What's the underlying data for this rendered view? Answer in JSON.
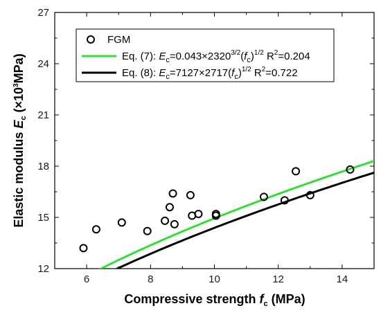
{
  "chart_data": {
    "type": "scatter",
    "xlabel": {
      "main": "Compressive strength ",
      "var": "f",
      "sub": "c",
      "unit": " (MPa)"
    },
    "ylabel": {
      "main": "Elastic modulus ",
      "var": "E",
      "sub": "c",
      "unit_pre": " (×10",
      "unit_sup": "3",
      "unit_post": "MPa)"
    },
    "xlim": [
      5,
      15
    ],
    "ylim": [
      12,
      27
    ],
    "x_ticks": [
      "6",
      "8",
      "10",
      "12",
      "14"
    ],
    "y_ticks": [
      "12",
      "15",
      "18",
      "21",
      "24",
      "27"
    ],
    "legend_placement": "top-left",
    "series": [
      {
        "name": "FGM",
        "kind": "markers",
        "marker": "open-circle",
        "color": "#000000",
        "points": [
          [
            5.9,
            13.2
          ],
          [
            6.3,
            14.3
          ],
          [
            7.1,
            14.7
          ],
          [
            7.9,
            14.2
          ],
          [
            8.45,
            14.8
          ],
          [
            8.6,
            15.6
          ],
          [
            8.7,
            16.4
          ],
          [
            8.75,
            14.6
          ],
          [
            9.25,
            16.3
          ],
          [
            9.3,
            15.1
          ],
          [
            9.5,
            15.2
          ],
          [
            10.05,
            15.1
          ],
          [
            10.05,
            15.2
          ],
          [
            11.55,
            16.2
          ],
          [
            12.2,
            16.0
          ],
          [
            12.55,
            17.7
          ],
          [
            13.0,
            16.3
          ],
          [
            14.25,
            17.8
          ]
        ]
      },
      {
        "name": "Eq. (7)",
        "kind": "line",
        "color": "#33dd33",
        "coef": 4.7255,
        "x_range": [
          6.25,
          15
        ],
        "legend_label": "Eq. (7):  ",
        "formula": {
          "v": "E",
          "vs": "c",
          "a": "=0.043×2320",
          "asup": "3/2",
          "b": "(",
          "bv": "f",
          "bs": "c",
          "c": ")",
          "csup": "1/2",
          "d": " R",
          "dsup": "2",
          "e": "=0.204"
        }
      },
      {
        "name": "Eq. (8)",
        "kind": "line",
        "color": "#000000",
        "coef": 4.5495,
        "x_range": [
          5,
          15
        ],
        "legend_label": "Eq. (8):  ",
        "formula": {
          "v": "E",
          "vs": "c",
          "a": "=7127×2717",
          "asup": "",
          "b": "(",
          "bv": "f",
          "bs": "c",
          "c": ")",
          "csup": "1/2",
          "d": "   R",
          "dsup": "2",
          "e": "=0.722"
        }
      }
    ]
  }
}
